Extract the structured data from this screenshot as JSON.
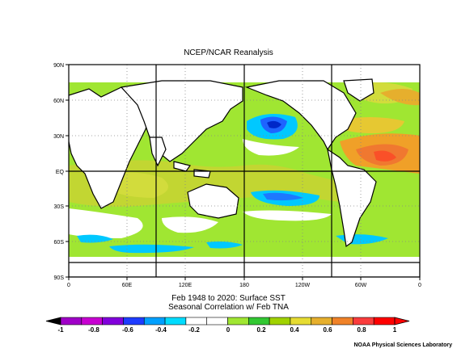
{
  "map": {
    "title": "NCEP/NCAR Reanalysis",
    "lat_labels": [
      "90N",
      "60N",
      "30N",
      "EQ",
      "30S",
      "60S",
      "90S"
    ],
    "lon_labels": [
      "0",
      "60E",
      "120E",
      "180",
      "120W",
      "60W",
      "0"
    ],
    "subtitle_line1": "Feb 1948 to 2020: Surface SST",
    "subtitle_line2": "Seasonal Correlation w/ Feb TNA",
    "credit": "NOAA Physical Sciences Laboratory"
  },
  "legend": {
    "labels": [
      "-1",
      "-0.8",
      "-0.6",
      "-0.4",
      "-0.2",
      "0",
      "0.2",
      "0.4",
      "0.6",
      "0.8",
      "1"
    ],
    "colors": [
      "#a000c8",
      "#c800d2",
      "#8200dc",
      "#1e3cff",
      "#00a0ff",
      "#00dcff",
      "#ffffff",
      "#ffffff",
      "#a0e632",
      "#32c832",
      "#a0d200",
      "#e6dc32",
      "#e6af2d",
      "#f08228",
      "#fa3c3c",
      "#ff0000"
    ]
  }
}
